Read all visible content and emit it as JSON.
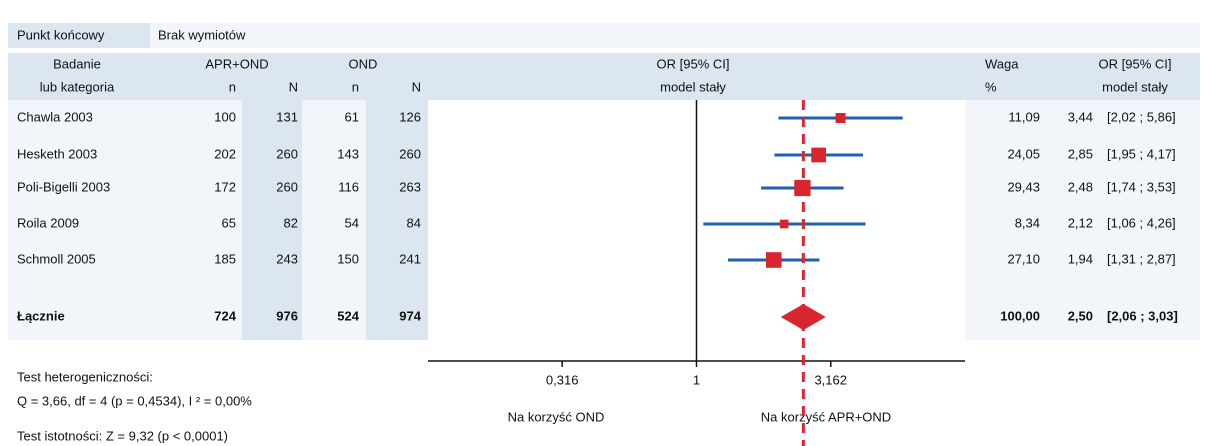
{
  "chart_data": {
    "type": "forest",
    "xscale": "log",
    "xlim": [
      0.1,
      10
    ],
    "xticks": [
      {
        "value": 0.316,
        "label": "0,316"
      },
      1,
      {
        "value": 3.162,
        "label": "3,162"
      }
    ],
    "ci_color": "#1f62ac",
    "marker_color": "#d9262e",
    "endpoint_label": "Punkt końcowy",
    "endpoint": "Brak wymiotów",
    "headers": {
      "study": "Badanie",
      "study_sub": "lub kategoria",
      "group1": "APR+OND",
      "group2": "OND",
      "n": "n",
      "N": "N",
      "plot": "OR [95% CI]",
      "plot_sub": "model stały",
      "weight": "Waga",
      "weight_sub": "%",
      "or": "OR [95% CI]",
      "or_sub": "model stały"
    },
    "studies": [
      {
        "name": "Chawla 2003",
        "n1": 100,
        "N1": 131,
        "n2": 61,
        "N2": 126,
        "weight": 11.09,
        "weight_label": "11,09",
        "or": 3.44,
        "or_label": "3,44",
        "ci_low": 2.02,
        "ci_high": 5.86,
        "ci_label": "[2,02 ; 5,86]"
      },
      {
        "name": "Hesketh 2003",
        "n1": 202,
        "N1": 260,
        "n2": 143,
        "N2": 260,
        "weight": 24.05,
        "weight_label": "24,05",
        "or": 2.85,
        "or_label": "2,85",
        "ci_low": 1.95,
        "ci_high": 4.17,
        "ci_label": "[1,95 ; 4,17]"
      },
      {
        "name": "Poli-Bigelli 2003",
        "n1": 172,
        "N1": 260,
        "n2": 116,
        "N2": 263,
        "weight": 29.43,
        "weight_label": "29,43",
        "or": 2.48,
        "or_label": "2,48",
        "ci_low": 1.74,
        "ci_high": 3.53,
        "ci_label": "[1,74 ; 3,53]"
      },
      {
        "name": "Roila 2009",
        "n1": 65,
        "N1": 82,
        "n2": 54,
        "N2": 84,
        "weight": 8.34,
        "weight_label": "8,34",
        "or": 2.12,
        "or_label": "2,12",
        "ci_low": 1.06,
        "ci_high": 4.26,
        "ci_label": "[1,06 ; 4,26]"
      },
      {
        "name": "Schmoll 2005",
        "n1": 185,
        "N1": 243,
        "n2": 150,
        "N2": 241,
        "weight": 27.1,
        "weight_label": "27,10",
        "or": 1.94,
        "or_label": "1,94",
        "ci_low": 1.31,
        "ci_high": 2.87,
        "ci_label": "[1,31 ; 2,87]"
      }
    ],
    "total": {
      "name": "Łącznie",
      "n1": 724,
      "N1": 976,
      "n2": 524,
      "N2": 974,
      "weight": 100.0,
      "weight_label": "100,00",
      "or": 2.5,
      "or_label": "2,50",
      "ci_low": 2.06,
      "ci_high": 3.03,
      "ci_label": "[2,06 ; 3,03]"
    },
    "xlabel_left": "Na korzyść OND",
    "xlabel_right": "Na korzyść APR+OND",
    "heterogeneity_title": "Test heterogeniczności:",
    "heterogeneity": "Q = 3,66, df = 4 (p = 0,4534), I ² = 0,00%",
    "significance": "Test istotności: Z = 9,32 (p < 0,0001)"
  }
}
